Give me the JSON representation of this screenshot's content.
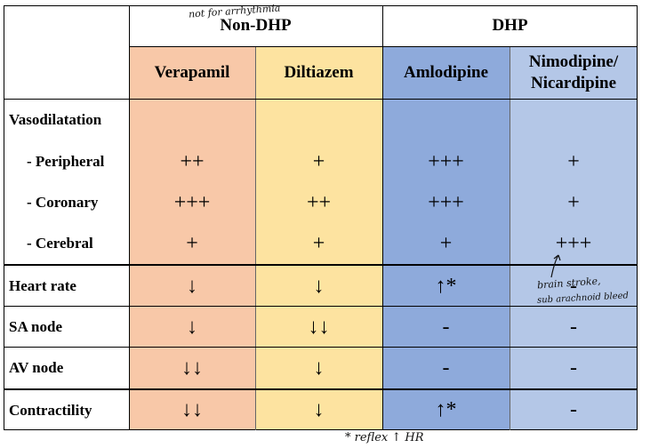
{
  "groups": {
    "non_dhp": "Non-DHP",
    "dhp": "DHP"
  },
  "drugs": [
    "Verapamil",
    "Diltiazem",
    "Amlodipine",
    "Nimodipine/\nNicardipine"
  ],
  "colors": {
    "verapamil": "#f8c8a8",
    "diltiazem": "#fde3a0",
    "amlodipine": "#8eaadb",
    "nimodipine": "#b4c7e7"
  },
  "rows": [
    {
      "label": "Vasodilatation",
      "values": [
        "",
        "",
        "",
        ""
      ]
    },
    {
      "label": "- Peripheral",
      "values": [
        "++",
        "+",
        "+++",
        "+"
      ]
    },
    {
      "label": "- Coronary",
      "values": [
        "+++",
        "++",
        "+++",
        "+"
      ]
    },
    {
      "label": "- Cerebral",
      "values": [
        "+",
        "+",
        "+",
        "+++"
      ]
    },
    {
      "label": "Heart rate",
      "values": [
        "↓",
        "↓",
        "↑*",
        "-"
      ]
    },
    {
      "label": "SA node",
      "values": [
        "↓",
        "↓↓",
        "-",
        "-"
      ]
    },
    {
      "label": "AV node",
      "values": [
        "↓↓",
        "↓",
        "-",
        "-"
      ]
    },
    {
      "label": "Contractility",
      "values": [
        "↓↓",
        "↓",
        "↑*",
        "-"
      ]
    }
  ],
  "annotations": {
    "top": "not for arrhythmia",
    "side_1": "brain stroke,",
    "side_2": "sub arachnoid bleed",
    "bottom": "* reflex ↑ HR"
  }
}
